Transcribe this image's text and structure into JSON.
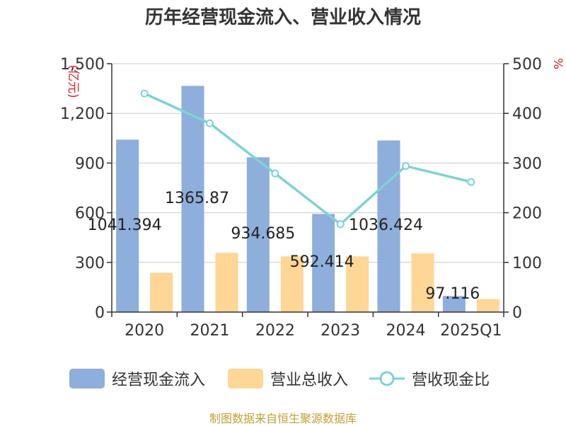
{
  "title": "历年经营现金流入、营业收入情况",
  "footer": "制图数据来自恒生聚源数据库",
  "colors": {
    "cash": "#8eaedb",
    "revenue": "#fed695",
    "ratio": "#7dd3d3"
  },
  "chart_data": {
    "type": "bar",
    "title": "历年经营现金流入、营业收入情况",
    "categories": [
      "2020",
      "2021",
      "2022",
      "2023",
      "2024",
      "2025Q1"
    ],
    "y_left": {
      "label": "(亿元)",
      "ylim": [
        0,
        1500
      ],
      "ticks": [
        0,
        300,
        600,
        900,
        1200,
        1500
      ],
      "tick_labels": [
        "0",
        "300",
        "600",
        "900",
        "1,200",
        "1,500"
      ]
    },
    "y_right": {
      "label": "%",
      "ylim": [
        0,
        500
      ],
      "ticks": [
        0,
        100,
        200,
        300,
        400,
        500
      ],
      "tick_labels": [
        "0",
        "100",
        "200",
        "300",
        "400",
        "500"
      ]
    },
    "series": [
      {
        "name": "经营现金流入",
        "type": "bar",
        "axis": "left",
        "values": [
          1041.394,
          1365.87,
          934.685,
          592.414,
          1036.424,
          97.116
        ],
        "data_labels": [
          "1041.394",
          "1365.87",
          "934.685",
          "592.414",
          "1036.424",
          "97.116"
        ]
      },
      {
        "name": "营业总收入",
        "type": "bar",
        "axis": "left",
        "values": [
          237,
          358,
          336,
          336,
          354,
          78
        ]
      },
      {
        "name": "营收现金比",
        "type": "line",
        "axis": "right",
        "values": [
          440,
          380,
          279,
          177,
          294,
          262
        ]
      }
    ],
    "grid": true,
    "legend_position": "bottom"
  }
}
